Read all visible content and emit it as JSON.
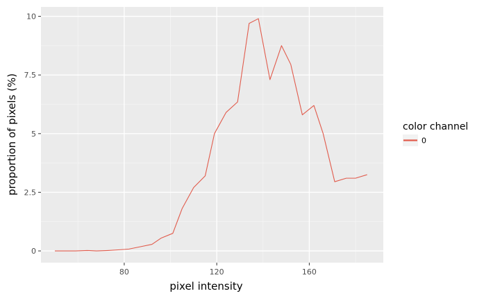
{
  "chart_data": {
    "type": "line",
    "title": "",
    "xlabel": "pixel intensity",
    "ylabel": "proportion of pixels (%)",
    "xlim": [
      44,
      192
    ],
    "ylim": [
      -0.5,
      10.4
    ],
    "xticks": [
      80,
      120,
      160
    ],
    "xtick_labels": [
      "80",
      "120",
      "160"
    ],
    "yticks": [
      0,
      2.5,
      5,
      7.5,
      10
    ],
    "ytick_labels": [
      "0",
      "2.5",
      "5",
      "7.5",
      "10"
    ],
    "grid": true,
    "legend": {
      "title": "color channel",
      "position": "right"
    },
    "series": [
      {
        "name": "0",
        "color": "#E15B4C",
        "x": [
          50,
          59,
          64,
          68,
          73,
          78,
          82,
          87,
          92,
          96,
          101,
          105,
          110,
          115,
          119,
          124,
          129,
          134,
          138,
          143,
          148,
          152,
          157,
          162,
          166,
          171,
          176,
          180,
          185
        ],
        "y": [
          0.0,
          0.0,
          0.02,
          0.0,
          0.02,
          0.05,
          0.08,
          0.18,
          0.28,
          0.55,
          0.75,
          1.8,
          2.7,
          3.2,
          5.0,
          5.9,
          6.35,
          9.7,
          9.9,
          7.3,
          8.75,
          7.95,
          5.8,
          6.2,
          5.0,
          2.95,
          3.1,
          3.1,
          3.25
        ]
      }
    ]
  }
}
